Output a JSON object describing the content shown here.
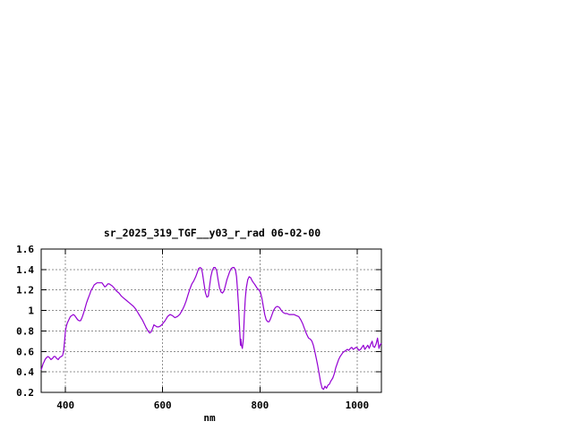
{
  "window": {
    "background": "#ffffff"
  },
  "chart_data": {
    "type": "line",
    "title": "sr_2025_319_TGF__y03_r_rad 06-02-00",
    "xlabel": "nm",
    "ylabel": "",
    "xlim": [
      350,
      1050
    ],
    "ylim": [
      0.2,
      1.6
    ],
    "xticks": [
      400,
      600,
      800,
      1000
    ],
    "xtick_labels": [
      "400",
      "600",
      "800",
      "1000"
    ],
    "yticks": [
      0.2,
      0.4,
      0.6,
      0.8,
      1.0,
      1.2,
      1.4,
      1.6
    ],
    "ytick_labels": [
      "0.2",
      "0.4",
      "0.6",
      "0.8",
      "1",
      "1.2",
      "1.4",
      "1.6"
    ],
    "grid": true,
    "legend": "none",
    "line_color": "#9400d3",
    "grid_color": "#909090",
    "border_color": "#000000",
    "series": [
      {
        "points": [
          [
            350,
            0.42
          ],
          [
            352,
            0.45
          ],
          [
            354,
            0.48
          ],
          [
            356,
            0.5
          ],
          [
            358,
            0.52
          ],
          [
            361,
            0.54
          ],
          [
            364,
            0.55
          ],
          [
            367,
            0.54
          ],
          [
            370,
            0.52
          ],
          [
            373,
            0.53
          ],
          [
            376,
            0.55
          ],
          [
            379,
            0.55
          ],
          [
            382,
            0.53
          ],
          [
            385,
            0.52
          ],
          [
            388,
            0.54
          ],
          [
            391,
            0.55
          ],
          [
            394,
            0.56
          ],
          [
            396,
            0.6
          ],
          [
            398,
            0.7
          ],
          [
            400,
            0.8
          ],
          [
            402,
            0.85
          ],
          [
            404,
            0.88
          ],
          [
            407,
            0.91
          ],
          [
            410,
            0.94
          ],
          [
            413,
            0.95
          ],
          [
            416,
            0.96
          ],
          [
            419,
            0.95
          ],
          [
            422,
            0.93
          ],
          [
            425,
            0.91
          ],
          [
            428,
            0.9
          ],
          [
            431,
            0.9
          ],
          [
            434,
            0.93
          ],
          [
            437,
            0.97
          ],
          [
            440,
            1.02
          ],
          [
            443,
            1.07
          ],
          [
            446,
            1.11
          ],
          [
            450,
            1.16
          ],
          [
            453,
            1.2
          ],
          [
            456,
            1.22
          ],
          [
            459,
            1.25
          ],
          [
            462,
            1.26
          ],
          [
            465,
            1.27
          ],
          [
            470,
            1.27
          ],
          [
            475,
            1.27
          ],
          [
            478,
            1.25
          ],
          [
            481,
            1.23
          ],
          [
            484,
            1.24
          ],
          [
            487,
            1.26
          ],
          [
            490,
            1.26
          ],
          [
            493,
            1.25
          ],
          [
            496,
            1.24
          ],
          [
            500,
            1.22
          ],
          [
            505,
            1.19
          ],
          [
            510,
            1.17
          ],
          [
            515,
            1.14
          ],
          [
            520,
            1.12
          ],
          [
            525,
            1.1
          ],
          [
            530,
            1.08
          ],
          [
            535,
            1.06
          ],
          [
            540,
            1.04
          ],
          [
            545,
            1.01
          ],
          [
            550,
            0.97
          ],
          [
            554,
            0.94
          ],
          [
            558,
            0.91
          ],
          [
            562,
            0.87
          ],
          [
            566,
            0.83
          ],
          [
            570,
            0.8
          ],
          [
            573,
            0.78
          ],
          [
            576,
            0.79
          ],
          [
            579,
            0.82
          ],
          [
            582,
            0.86
          ],
          [
            585,
            0.85
          ],
          [
            588,
            0.84
          ],
          [
            592,
            0.84
          ],
          [
            596,
            0.85
          ],
          [
            600,
            0.87
          ],
          [
            605,
            0.9
          ],
          [
            610,
            0.94
          ],
          [
            615,
            0.96
          ],
          [
            620,
            0.95
          ],
          [
            625,
            0.93
          ],
          [
            630,
            0.94
          ],
          [
            635,
            0.96
          ],
          [
            640,
            1.0
          ],
          [
            644,
            1.04
          ],
          [
            648,
            1.09
          ],
          [
            652,
            1.15
          ],
          [
            656,
            1.21
          ],
          [
            660,
            1.26
          ],
          [
            664,
            1.29
          ],
          [
            668,
            1.33
          ],
          [
            671,
            1.37
          ],
          [
            674,
            1.41
          ],
          [
            677,
            1.42
          ],
          [
            680,
            1.41
          ],
          [
            682,
            1.36
          ],
          [
            685,
            1.26
          ],
          [
            688,
            1.17
          ],
          [
            691,
            1.13
          ],
          [
            694,
            1.14
          ],
          [
            696,
            1.22
          ],
          [
            699,
            1.33
          ],
          [
            702,
            1.39
          ],
          [
            705,
            1.42
          ],
          [
            708,
            1.42
          ],
          [
            711,
            1.39
          ],
          [
            714,
            1.3
          ],
          [
            717,
            1.22
          ],
          [
            720,
            1.18
          ],
          [
            723,
            1.17
          ],
          [
            726,
            1.19
          ],
          [
            729,
            1.24
          ],
          [
            732,
            1.3
          ],
          [
            735,
            1.34
          ],
          [
            738,
            1.38
          ],
          [
            741,
            1.41
          ],
          [
            744,
            1.42
          ],
          [
            747,
            1.42
          ],
          [
            750,
            1.39
          ],
          [
            752,
            1.33
          ],
          [
            754,
            1.2
          ],
          [
            756,
            1.05
          ],
          [
            758,
            0.85
          ],
          [
            760,
            0.66
          ],
          [
            761,
            0.72
          ],
          [
            762,
            0.66
          ],
          [
            764,
            0.63
          ],
          [
            766,
            0.72
          ],
          [
            768,
            0.95
          ],
          [
            770,
            1.12
          ],
          [
            772,
            1.22
          ],
          [
            775,
            1.3
          ],
          [
            778,
            1.33
          ],
          [
            781,
            1.32
          ],
          [
            784,
            1.29
          ],
          [
            787,
            1.27
          ],
          [
            790,
            1.25
          ],
          [
            794,
            1.22
          ],
          [
            798,
            1.2
          ],
          [
            801,
            1.18
          ],
          [
            804,
            1.12
          ],
          [
            807,
            1.04
          ],
          [
            810,
            0.96
          ],
          [
            813,
            0.91
          ],
          [
            816,
            0.89
          ],
          [
            819,
            0.89
          ],
          [
            822,
            0.92
          ],
          [
            825,
            0.96
          ],
          [
            828,
            1.0
          ],
          [
            832,
            1.03
          ],
          [
            836,
            1.04
          ],
          [
            840,
            1.03
          ],
          [
            844,
            1.0
          ],
          [
            848,
            0.98
          ],
          [
            852,
            0.97
          ],
          [
            856,
            0.97
          ],
          [
            860,
            0.96
          ],
          [
            865,
            0.96
          ],
          [
            870,
            0.96
          ],
          [
            875,
            0.95
          ],
          [
            880,
            0.94
          ],
          [
            884,
            0.91
          ],
          [
            888,
            0.87
          ],
          [
            892,
            0.82
          ],
          [
            896,
            0.77
          ],
          [
            900,
            0.73
          ],
          [
            904,
            0.72
          ],
          [
            907,
            0.7
          ],
          [
            910,
            0.66
          ],
          [
            913,
            0.6
          ],
          [
            916,
            0.53
          ],
          [
            919,
            0.46
          ],
          [
            922,
            0.38
          ],
          [
            925,
            0.3
          ],
          [
            928,
            0.24
          ],
          [
            931,
            0.23
          ],
          [
            934,
            0.26
          ],
          [
            937,
            0.24
          ],
          [
            940,
            0.27
          ],
          [
            943,
            0.28
          ],
          [
            946,
            0.31
          ],
          [
            950,
            0.34
          ],
          [
            953,
            0.38
          ],
          [
            956,
            0.44
          ],
          [
            959,
            0.48
          ],
          [
            962,
            0.52
          ],
          [
            965,
            0.55
          ],
          [
            968,
            0.57
          ],
          [
            971,
            0.59
          ],
          [
            974,
            0.6
          ],
          [
            977,
            0.61
          ],
          [
            980,
            0.62
          ],
          [
            983,
            0.61
          ],
          [
            986,
            0.63
          ],
          [
            989,
            0.64
          ],
          [
            992,
            0.62
          ],
          [
            995,
            0.63
          ],
          [
            998,
            0.64
          ],
          [
            1001,
            0.63
          ],
          [
            1004,
            0.61
          ],
          [
            1007,
            0.62
          ],
          [
            1010,
            0.64
          ],
          [
            1013,
            0.66
          ],
          [
            1016,
            0.62
          ],
          [
            1019,
            0.64
          ],
          [
            1022,
            0.66
          ],
          [
            1025,
            0.63
          ],
          [
            1028,
            0.67
          ],
          [
            1031,
            0.7
          ],
          [
            1033,
            0.65
          ],
          [
            1036,
            0.64
          ],
          [
            1039,
            0.67
          ],
          [
            1042,
            0.73
          ],
          [
            1045,
            0.63
          ],
          [
            1047,
            0.66
          ],
          [
            1050,
            0.68
          ]
        ]
      }
    ]
  }
}
